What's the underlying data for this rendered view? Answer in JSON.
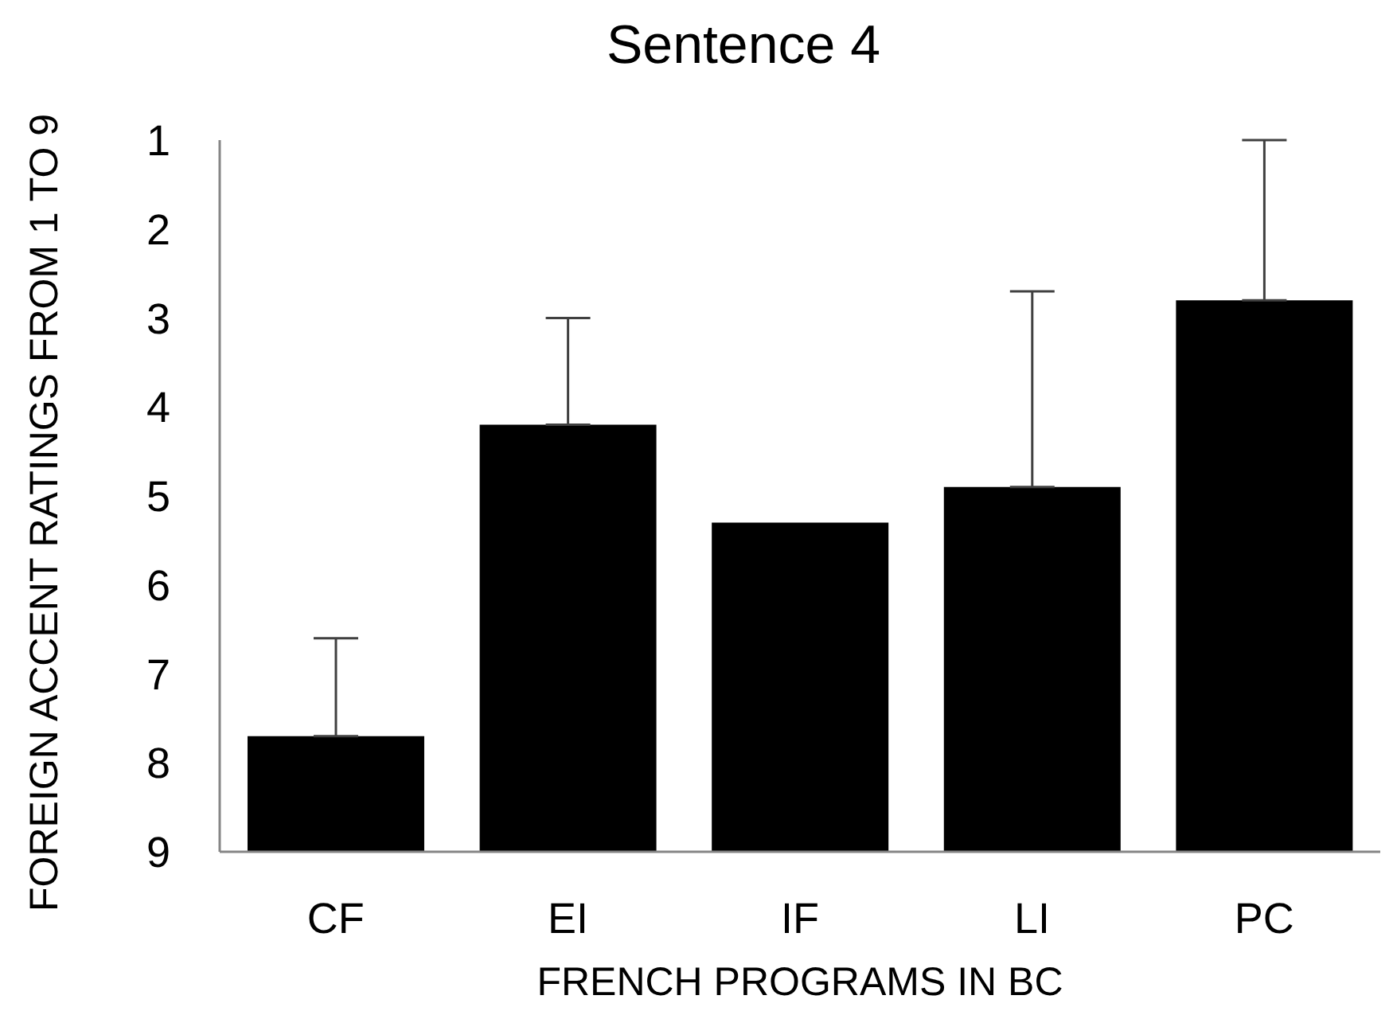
{
  "chart_data": {
    "type": "bar",
    "title": "Sentence 4",
    "xlabel": "FRENCH PROGRAMS IN BC",
    "ylabel": "FOREIGN ACCENT RATINGS FROM 1 TO 9",
    "categories": [
      "CF",
      "EI",
      "IF",
      "LI",
      "PC"
    ],
    "base": [
      9,
      9,
      9,
      9,
      9
    ],
    "values": [
      -1.3,
      -4.8,
      -3.7,
      -4.1,
      -6.2
    ],
    "errors": [
      [
        6.6,
        7.7
      ],
      [
        3.0,
        4.2
      ],
      null,
      [
        2.7,
        4.9
      ],
      [
        1,
        2.8
      ]
    ],
    "color": "#000000",
    "ylim": [
      9,
      1
    ],
    "yticks": [
      1,
      2,
      3,
      4,
      5,
      6,
      7,
      8,
      9
    ]
  }
}
